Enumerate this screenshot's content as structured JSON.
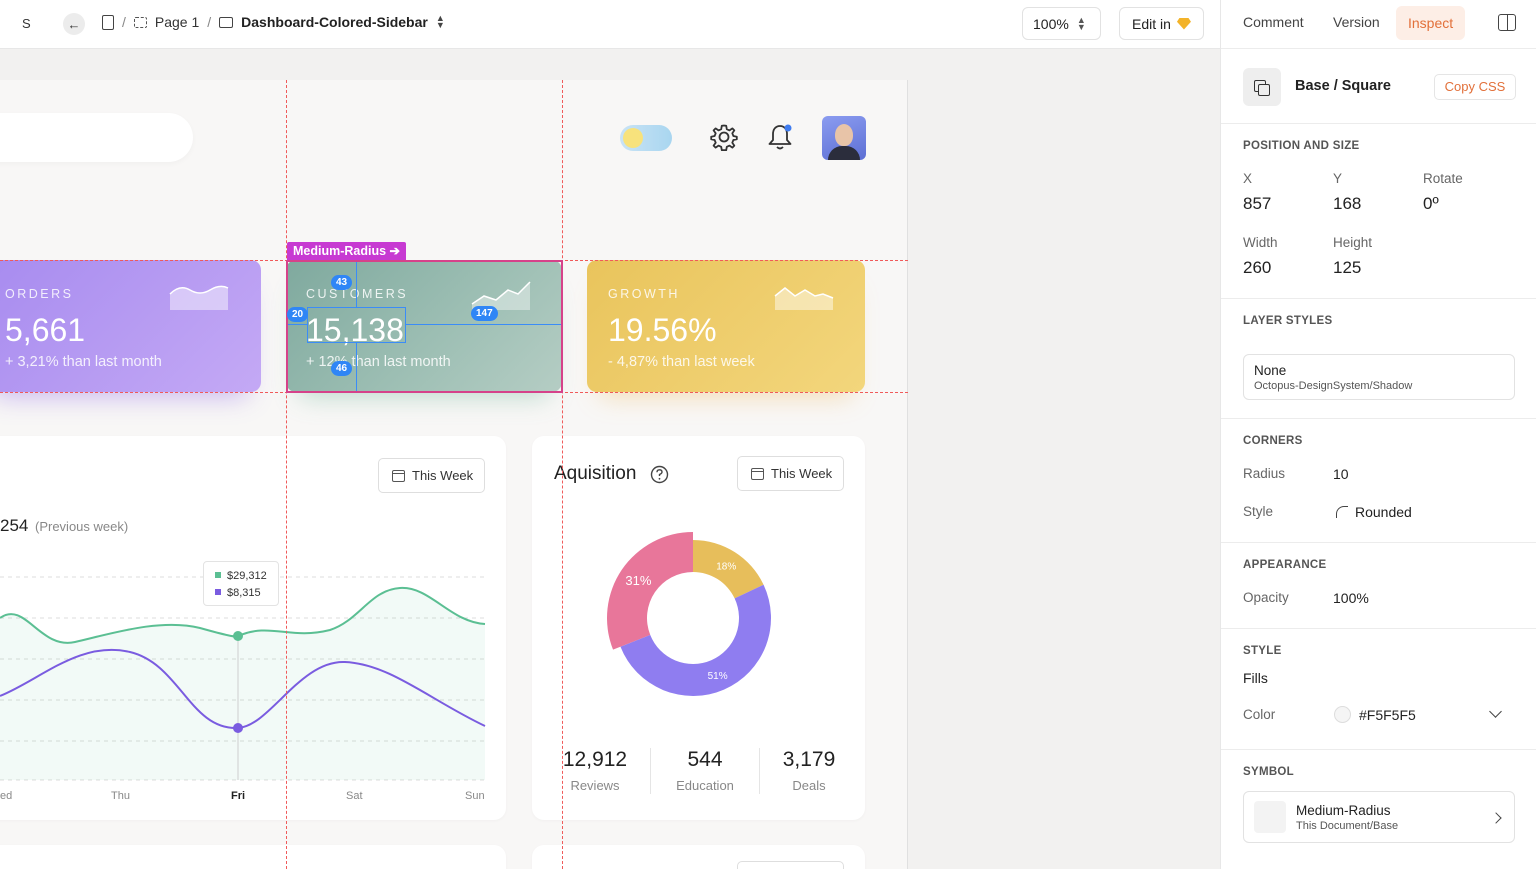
{
  "topbar": {
    "s_mark": "S",
    "back_icon": "arrow-left-icon",
    "crumbs": {
      "sep1": "/",
      "page": "Page 1",
      "sep2": "/",
      "artboard": "Dashboard-Colored-Sidebar"
    },
    "zoom": "100%",
    "edit_label": "Edit in",
    "edit_icon": "sketch-gem-icon"
  },
  "panel": {
    "tabs": [
      "Comment",
      "Version",
      "Inspect"
    ],
    "active_tab": "Inspect",
    "layer_name": "Base / Square",
    "copy_css": "Copy CSS",
    "position": {
      "title": "POSITION AND SIZE",
      "x_label": "X",
      "x": "857",
      "y_label": "Y",
      "y": "168",
      "rotate_label": "Rotate",
      "rotate": "0º",
      "width_label": "Width",
      "width": "260",
      "height_label": "Height",
      "height": "125"
    },
    "layer_styles": {
      "title": "LAYER STYLES",
      "name": "None",
      "source": "Octopus-DesignSystem/Shadow"
    },
    "corners": {
      "title": "CORNERS",
      "radius_label": "Radius",
      "radius": "10",
      "style_label": "Style",
      "style": "Rounded"
    },
    "appearance": {
      "title": "APPEARANCE",
      "opacity_label": "Opacity",
      "opacity": "100%"
    },
    "style": {
      "title": "STYLE",
      "fills": "Fills",
      "color_label": "Color",
      "color": "#F5F5F5"
    },
    "symbol": {
      "title": "SYMBOL",
      "name": "Medium-Radius",
      "source": "This Document/Base"
    },
    "accent": "#E2703A"
  },
  "canvas": {
    "selection_tag": "Medium-Radius",
    "measurements": {
      "top": "43",
      "left": "20",
      "right": "147",
      "bottom": "46"
    },
    "cards": [
      {
        "label": "ORDERS",
        "value": "5,661",
        "sub": "+ 3,21% than last month"
      },
      {
        "label": "CUSTOMERS",
        "value": "15,138",
        "sub": "+ 12% than last month"
      },
      {
        "label": "GROWTH",
        "value": "19.56%",
        "sub": "- 4,87% than last week"
      }
    ],
    "revenue": {
      "week_button": "This Week",
      "total_partial": "254",
      "prev_note": "(Previous week)",
      "tooltip": [
        {
          "value": "$29,312",
          "color": "#5bbf93"
        },
        {
          "value": "$8,315",
          "color": "#7a5ce0"
        }
      ],
      "days": [
        "ed",
        "Thu",
        "Fri",
        "Sat",
        "Sun"
      ]
    },
    "acquisition": {
      "title": "Aquisition",
      "help_icon": "question-circle-icon",
      "week_button": "This Week",
      "slices": [
        {
          "label": "31%",
          "value": 31,
          "color": "#e8769a"
        },
        {
          "label": "18%",
          "value": 18,
          "color": "#e7be5b"
        },
        {
          "label": "51%",
          "value": 51,
          "color": "#8f7df0"
        }
      ],
      "stats": [
        {
          "num": "12,912",
          "cap": "Reviews"
        },
        {
          "num": "544",
          "cap": "Education"
        },
        {
          "num": "3,179",
          "cap": "Deals"
        }
      ]
    }
  }
}
